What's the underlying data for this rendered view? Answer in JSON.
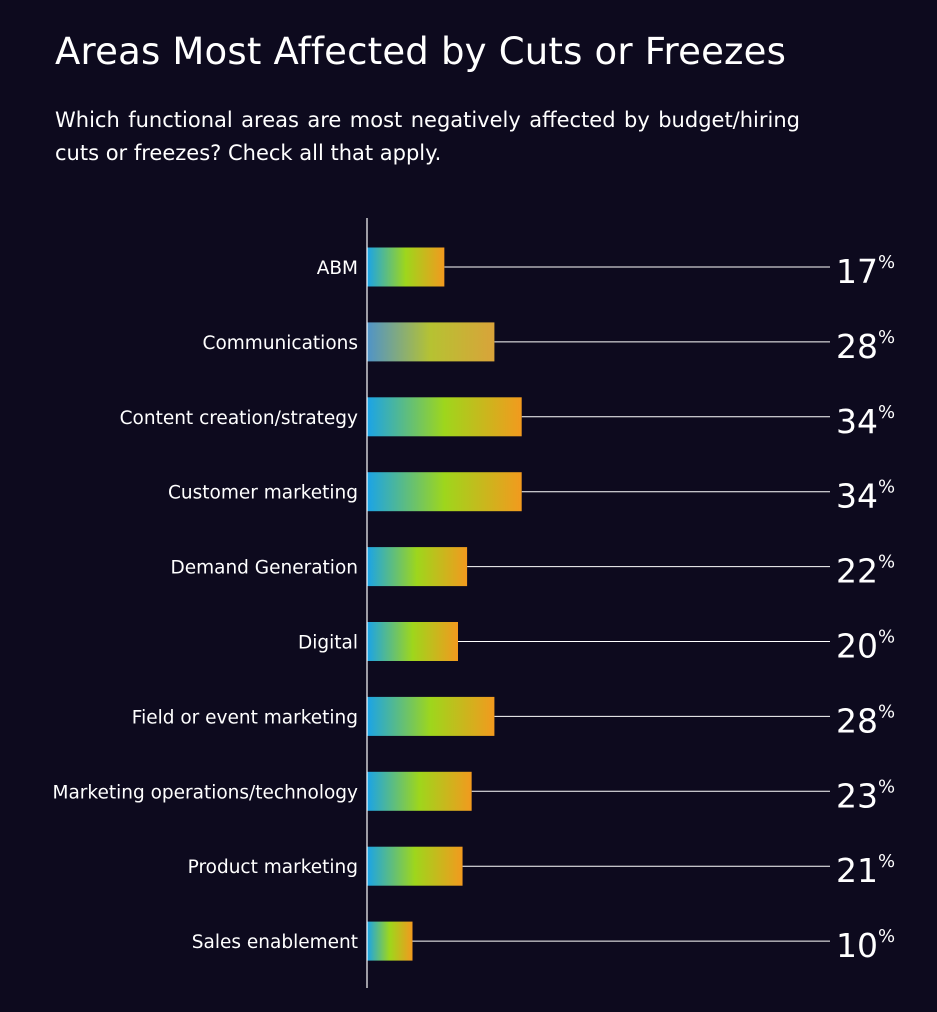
{
  "chart_data": {
    "type": "bar",
    "orientation": "horizontal",
    "title": "Areas Most Affected by Cuts or Freezes",
    "subtitle": "Which functional areas are most negatively affected by budget/hiring cuts or freezes? Check all that apply.",
    "categories": [
      "ABM",
      "Communications",
      "Content creation/strategy",
      "Customer marketing",
      "Demand Generation",
      "Digital",
      "Field or event marketing",
      "Marketing operations/technology",
      "Product marketing",
      "Sales enablement"
    ],
    "values": [
      17,
      28,
      34,
      34,
      22,
      20,
      28,
      23,
      21,
      10
    ],
    "value_labels": [
      "17",
      "28",
      "34",
      "34",
      "22",
      "20",
      "28",
      "23",
      "21",
      "10"
    ],
    "value_suffix": "%",
    "xlim": [
      0,
      100
    ],
    "grid": false,
    "legend": "none",
    "colors": {
      "background": "#0d0a1e",
      "text": "#ffffff",
      "gradient": [
        "#1aa3e8",
        "#9ed61c",
        "#f29a1e"
      ],
      "communications_gradient": [
        "#4f93c9",
        "#b6c232",
        "#d9a33a"
      ]
    }
  }
}
